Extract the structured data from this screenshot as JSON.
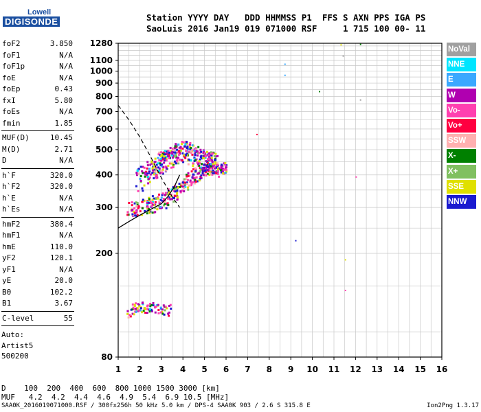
{
  "logo": {
    "line1": "Lowell",
    "line2": "DIGISONDE"
  },
  "header": {
    "line1": "Station YYYY DAY   DDD HHMMSS P1  FFS S AXN PPS IGA PS",
    "line2": "SaoLuis 2016 Jan19 019 071000 RSF     1 715 100 00- 11"
  },
  "params_group1": [
    {
      "k": "foF2",
      "v": "3.850"
    },
    {
      "k": "foF1",
      "v": "N/A"
    },
    {
      "k": "foF1p",
      "v": "N/A"
    },
    {
      "k": "foE",
      "v": "N/A"
    },
    {
      "k": "foEp",
      "v": "0.43"
    },
    {
      "k": "fxI",
      "v": "5.80"
    },
    {
      "k": "foEs",
      "v": "N/A"
    },
    {
      "k": "fmin",
      "v": "1.85"
    }
  ],
  "params_group2": [
    {
      "k": "MUF(D)",
      "v": "10.45"
    },
    {
      "k": "M(D)",
      "v": "2.71"
    },
    {
      "k": "D",
      "v": "N/A"
    }
  ],
  "params_group3": [
    {
      "k": "h`F",
      "v": "320.0"
    },
    {
      "k": "h`F2",
      "v": "320.0"
    },
    {
      "k": "h`E",
      "v": "N/A"
    },
    {
      "k": "h`Es",
      "v": "N/A"
    }
  ],
  "params_group4": [
    {
      "k": "hmF2",
      "v": "380.4"
    },
    {
      "k": "hmF1",
      "v": "N/A"
    },
    {
      "k": "hmE",
      "v": "110.0"
    },
    {
      "k": "yF2",
      "v": "120.1"
    },
    {
      "k": "yF1",
      "v": "N/A"
    },
    {
      "k": "yE",
      "v": "20.0"
    },
    {
      "k": "B0",
      "v": "102.2"
    },
    {
      "k": "B1",
      "v": "3.67"
    }
  ],
  "params_group5": [
    {
      "k": "C-level",
      "v": "55"
    }
  ],
  "auto": {
    "line1": "Auto:",
    "line2": "Artist5",
    "line3": "500200"
  },
  "dmuf": {
    "line1": "D    100  200  400  600  800 1000 1500 3000 [km]",
    "line2": "MUF   4.2  4.2  4.4  4.6  4.9  5.4  6.9 10.5 [MHz]"
  },
  "footer": {
    "left": "SAA0K_2016019071000.RSF / 300fx256h 50 kHz 5.0 km / DPS-4 SAA0K 903 / 2.6 S 315.8 E",
    "right": "Ion2Png 1.3.17"
  },
  "legend": [
    {
      "label": "NoVal",
      "color": "#a0a0a0"
    },
    {
      "label": "NNE",
      "color": "#00e5ff"
    },
    {
      "label": "E",
      "color": "#3aa8ff"
    },
    {
      "label": "W",
      "color": "#b000b0"
    },
    {
      "label": "Vo-",
      "color": "#ff40b0"
    },
    {
      "label": "Vo+",
      "color": "#ff0040"
    },
    {
      "label": "SSW",
      "color": "#ffb0b0"
    },
    {
      "label": "X-",
      "color": "#008000"
    },
    {
      "label": "X+",
      "color": "#80c060"
    },
    {
      "label": "SSE",
      "color": "#e0e000"
    },
    {
      "label": "NNW",
      "color": "#1a1ad0"
    }
  ],
  "chart_data": {
    "type": "scatter",
    "title": "",
    "xlabel": "",
    "ylabel": "",
    "xlim": [
      1,
      16
    ],
    "ylim": [
      80,
      1280
    ],
    "y_scale": "log",
    "x_ticks": [
      1,
      2,
      3,
      4,
      5,
      6,
      7,
      8,
      9,
      10,
      11,
      12,
      13,
      14,
      15,
      16
    ],
    "y_ticks": [
      80,
      200,
      300,
      400,
      500,
      600,
      700,
      800,
      900,
      1000,
      1100,
      1280
    ],
    "grid": true,
    "legend_position": "right",
    "echo_clusters": [
      {
        "name": "F-trace",
        "x": [
          1.5,
          2.0,
          2.5,
          3.0,
          3.5,
          4.0,
          4.5,
          5.0,
          5.5,
          5.9
        ],
        "y": [
          300,
          305,
          310,
          320,
          340,
          370,
          400,
          420,
          430,
          430
        ]
      },
      {
        "name": "spread-F",
        "x": [
          1.8,
          2.5,
          3.0,
          3.5,
          4.0,
          4.5,
          5.0,
          5.5
        ],
        "y": [
          380,
          420,
          450,
          480,
          500,
          480,
          460,
          440
        ]
      },
      {
        "name": "E-trace",
        "x": [
          1.5,
          2.0,
          2.5,
          3.0,
          3.3
        ],
        "y": [
          120,
          125,
          125,
          122,
          122
        ]
      }
    ],
    "isolated_points": [
      {
        "x": 11.3,
        "y": 1270
      },
      {
        "x": 12.2,
        "y": 1275
      },
      {
        "x": 11.4,
        "y": 1150
      },
      {
        "x": 8.7,
        "y": 1070
      },
      {
        "x": 8.7,
        "y": 970
      },
      {
        "x": 10.3,
        "y": 840
      },
      {
        "x": 12.2,
        "y": 780
      },
      {
        "x": 12.0,
        "y": 395
      },
      {
        "x": 11.5,
        "y": 190
      },
      {
        "x": 11.5,
        "y": 145
      },
      {
        "x": 9.2,
        "y": 225
      },
      {
        "x": 7.4,
        "y": 575
      }
    ],
    "profile_curve": {
      "x": [
        1.0,
        1.5,
        2.0,
        2.5,
        3.0,
        3.3,
        3.6,
        3.85
      ],
      "y": [
        250,
        265,
        280,
        295,
        310,
        330,
        360,
        400
      ]
    },
    "dashed_curve": {
      "x": [
        1.0,
        1.5,
        2.0,
        2.5,
        3.0,
        3.5,
        3.85
      ],
      "y": [
        740,
        650,
        560,
        470,
        390,
        330,
        300
      ]
    }
  }
}
